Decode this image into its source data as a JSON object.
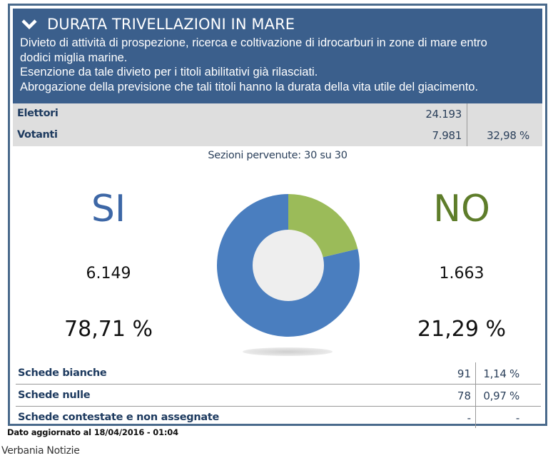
{
  "header": {
    "title": "DURATA TRIVELLAZIONI IN MARE",
    "toggle_icon": "chevron-down-icon",
    "description_lines": [
      "Divieto di attività di prospezione, ricerca e coltivazione di idrocarburi in zone di mare entro",
      "dodici miglia marine.",
      "Esenzione da tale divieto per i titoli abilitativi già rilasciati.",
      "Abrogazione della previsione che tali titoli hanno la durata della vita utile del giacimento."
    ]
  },
  "stats": {
    "elettori": {
      "label": "Elettori",
      "value": "24.193",
      "percent": ""
    },
    "votanti": {
      "label": "Votanti",
      "value": "7.981",
      "percent": "32,98 %"
    }
  },
  "sezioni": "Sezioni pervenute: 30 su 30",
  "results": {
    "si": {
      "label": "SI",
      "count": "6.149",
      "percent": "78,71 %",
      "color": "#3d67a6"
    },
    "no": {
      "label": "NO",
      "count": "1.663",
      "percent": "21,29 %",
      "color": "#5e7d2a"
    }
  },
  "chart_data": {
    "type": "pie",
    "title": "",
    "categories": [
      "SI",
      "NO"
    ],
    "values": [
      78.71,
      21.29
    ],
    "counts": [
      6149,
      1663
    ],
    "colors": [
      "#4a7ebf",
      "#9bbb59"
    ],
    "donut": true,
    "hole_color": "#eeeeee"
  },
  "schede": [
    {
      "label": "Schede bianche",
      "value": "91",
      "percent": "1,14 %"
    },
    {
      "label": "Schede nulle",
      "value": "78",
      "percent": "0,97 %"
    },
    {
      "label": "Schede contestate e non assegnate",
      "value": "-",
      "percent": "-"
    }
  ],
  "footer": {
    "updated": "Dato aggiornato al 18/04/2016 - 01:04",
    "source": "Verbania Notizie"
  },
  "colors": {
    "header_bg": "#3b5f8c",
    "border": "#4a6a8c",
    "stats_bg": "#dedede",
    "label_text": "#1d3a5f"
  }
}
